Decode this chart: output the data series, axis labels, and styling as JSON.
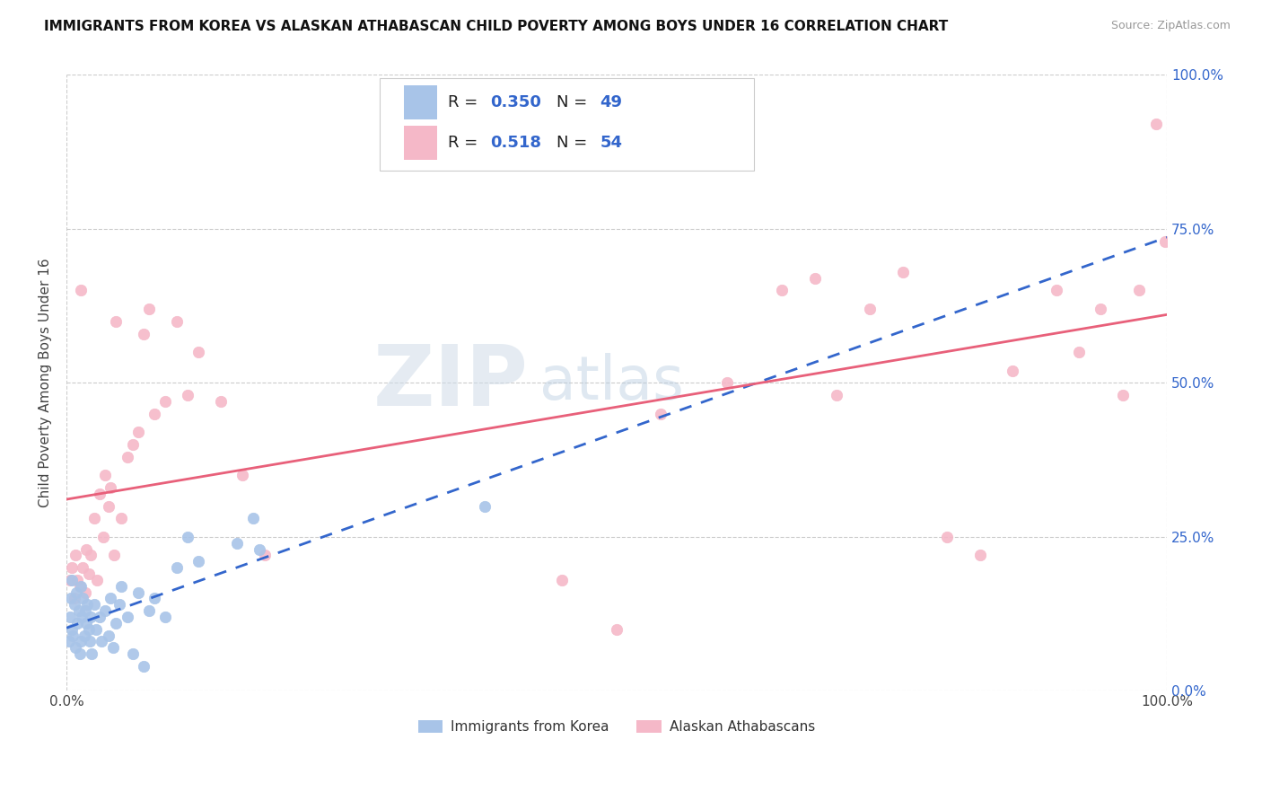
{
  "title": "IMMIGRANTS FROM KOREA VS ALASKAN ATHABASCAN CHILD POVERTY AMONG BOYS UNDER 16 CORRELATION CHART",
  "source": "Source: ZipAtlas.com",
  "ylabel": "Child Poverty Among Boys Under 16",
  "r_korea": 0.35,
  "n_korea": 49,
  "r_athabascan": 0.518,
  "n_athabascan": 54,
  "legend_label_korea": "Immigrants from Korea",
  "legend_label_athabascan": "Alaskan Athabascans",
  "korea_color": "#a8c4e8",
  "athabascan_color": "#f5b8c8",
  "korea_line_color": "#3366cc",
  "athabascan_line_color": "#e8607a",
  "background_color": "#ffffff",
  "grid_color": "#cccccc",
  "xlim": [
    0,
    1
  ],
  "ylim": [
    0,
    1
  ],
  "xtick_labels": [
    "0.0%",
    "100.0%"
  ],
  "ytick_labels": [
    "0.0%",
    "25.0%",
    "50.0%",
    "75.0%",
    "100.0%"
  ],
  "ytick_positions": [
    0.0,
    0.25,
    0.5,
    0.75,
    1.0
  ],
  "korea_x": [
    0.002,
    0.003,
    0.004,
    0.005,
    0.005,
    0.006,
    0.007,
    0.008,
    0.009,
    0.01,
    0.011,
    0.012,
    0.013,
    0.013,
    0.014,
    0.015,
    0.016,
    0.017,
    0.018,
    0.019,
    0.02,
    0.021,
    0.022,
    0.023,
    0.025,
    0.027,
    0.03,
    0.032,
    0.035,
    0.038,
    0.04,
    0.042,
    0.045,
    0.048,
    0.05,
    0.055,
    0.06,
    0.065,
    0.07,
    0.075,
    0.08,
    0.09,
    0.1,
    0.11,
    0.12,
    0.155,
    0.17,
    0.175,
    0.38
  ],
  "korea_y": [
    0.08,
    0.12,
    0.15,
    0.1,
    0.18,
    0.09,
    0.14,
    0.07,
    0.16,
    0.11,
    0.13,
    0.06,
    0.17,
    0.08,
    0.12,
    0.15,
    0.09,
    0.13,
    0.11,
    0.14,
    0.1,
    0.08,
    0.12,
    0.06,
    0.14,
    0.1,
    0.12,
    0.08,
    0.13,
    0.09,
    0.15,
    0.07,
    0.11,
    0.14,
    0.17,
    0.12,
    0.06,
    0.16,
    0.04,
    0.13,
    0.15,
    0.12,
    0.2,
    0.25,
    0.21,
    0.24,
    0.28,
    0.23,
    0.3
  ],
  "athabascan_x": [
    0.003,
    0.005,
    0.007,
    0.008,
    0.01,
    0.012,
    0.013,
    0.015,
    0.017,
    0.018,
    0.02,
    0.022,
    0.025,
    0.028,
    0.03,
    0.033,
    0.035,
    0.038,
    0.04,
    0.043,
    0.045,
    0.05,
    0.055,
    0.06,
    0.065,
    0.07,
    0.075,
    0.08,
    0.09,
    0.1,
    0.11,
    0.12,
    0.14,
    0.16,
    0.18,
    0.45,
    0.5,
    0.54,
    0.6,
    0.65,
    0.68,
    0.7,
    0.73,
    0.76,
    0.8,
    0.83,
    0.86,
    0.9,
    0.92,
    0.94,
    0.96,
    0.975,
    0.99,
    0.998
  ],
  "athabascan_y": [
    0.18,
    0.2,
    0.15,
    0.22,
    0.18,
    0.17,
    0.65,
    0.2,
    0.16,
    0.23,
    0.19,
    0.22,
    0.28,
    0.18,
    0.32,
    0.25,
    0.35,
    0.3,
    0.33,
    0.22,
    0.6,
    0.28,
    0.38,
    0.4,
    0.42,
    0.58,
    0.62,
    0.45,
    0.47,
    0.6,
    0.48,
    0.55,
    0.47,
    0.35,
    0.22,
    0.18,
    0.1,
    0.45,
    0.5,
    0.65,
    0.67,
    0.48,
    0.62,
    0.68,
    0.25,
    0.22,
    0.52,
    0.65,
    0.55,
    0.62,
    0.48,
    0.65,
    0.92,
    0.73
  ]
}
